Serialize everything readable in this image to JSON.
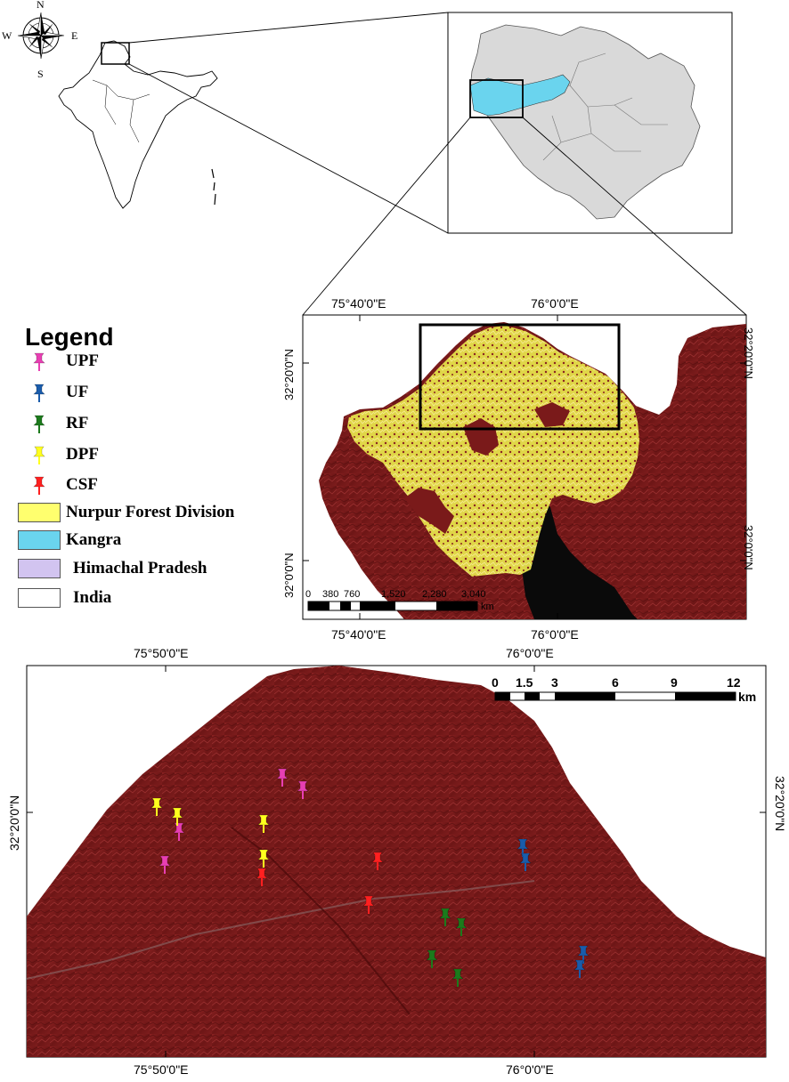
{
  "compass": {
    "n": "N",
    "s": "S",
    "e": "E",
    "w": "W"
  },
  "legend": {
    "title": "Legend",
    "points": [
      {
        "label": "UPF",
        "color": "#e83fb3",
        "icon": "pushpin-icon"
      },
      {
        "label": "UF",
        "color": "#1a5cab",
        "icon": "pushpin-icon"
      },
      {
        "label": "RF",
        "color": "#1c7a1c",
        "icon": "pushpin-icon"
      },
      {
        "label": "DPF",
        "color": "#ffff1e",
        "icon": "pushpin-icon"
      },
      {
        "label": "CSF",
        "color": "#ff2020",
        "icon": "pushpin-icon"
      }
    ],
    "areas": [
      {
        "label": "Nurpur Forest Division",
        "color": "#ffff6e"
      },
      {
        "label": "Kangra",
        "color": "#6ad4ee"
      },
      {
        "label": "Himachal Pradesh",
        "color": "#d2c4f0"
      },
      {
        "label": "India",
        "color": "#ffffff"
      }
    ]
  },
  "middle_map": {
    "lon_labels": [
      "75°40'0\"E",
      "76°0'0\"E"
    ],
    "lat_labels": [
      "32°20'0\"N",
      "32°0'0\"N"
    ],
    "scale_ticks": [
      "0",
      "380",
      "760",
      "1,520",
      "2,280",
      "3,040"
    ],
    "scale_unit": "km"
  },
  "bottom_map": {
    "lon_labels": [
      "75°50'0\"E",
      "76°0'0\"E"
    ],
    "lat_labels": [
      "32°20'0\"N"
    ],
    "scale_ticks": [
      "0",
      "1.5",
      "3",
      "6",
      "9",
      "12"
    ],
    "scale_unit": "km"
  },
  "sites": {
    "UPF": [
      [
        317,
        873
      ],
      [
        340,
        887
      ],
      [
        201,
        934
      ],
      [
        185,
        971
      ]
    ],
    "DPF": [
      [
        176,
        906
      ],
      [
        199,
        917
      ],
      [
        296,
        925
      ],
      [
        296,
        964
      ]
    ],
    "CSF": [
      [
        294,
        985
      ],
      [
        424,
        967
      ],
      [
        414,
        1016
      ]
    ],
    "RF": [
      [
        500,
        1030
      ],
      [
        518,
        1041
      ],
      [
        485,
        1077
      ],
      [
        514,
        1098
      ]
    ],
    "UF": [
      [
        587,
        952
      ],
      [
        590,
        968
      ],
      [
        655,
        1072
      ],
      [
        651,
        1088
      ]
    ]
  },
  "colors": {
    "forest": "#ffff6e",
    "kangra": "#6ad4ee",
    "hp": "#d9d9d9",
    "terrain": "#7a1a1a",
    "water": "#0a0a0a"
  }
}
